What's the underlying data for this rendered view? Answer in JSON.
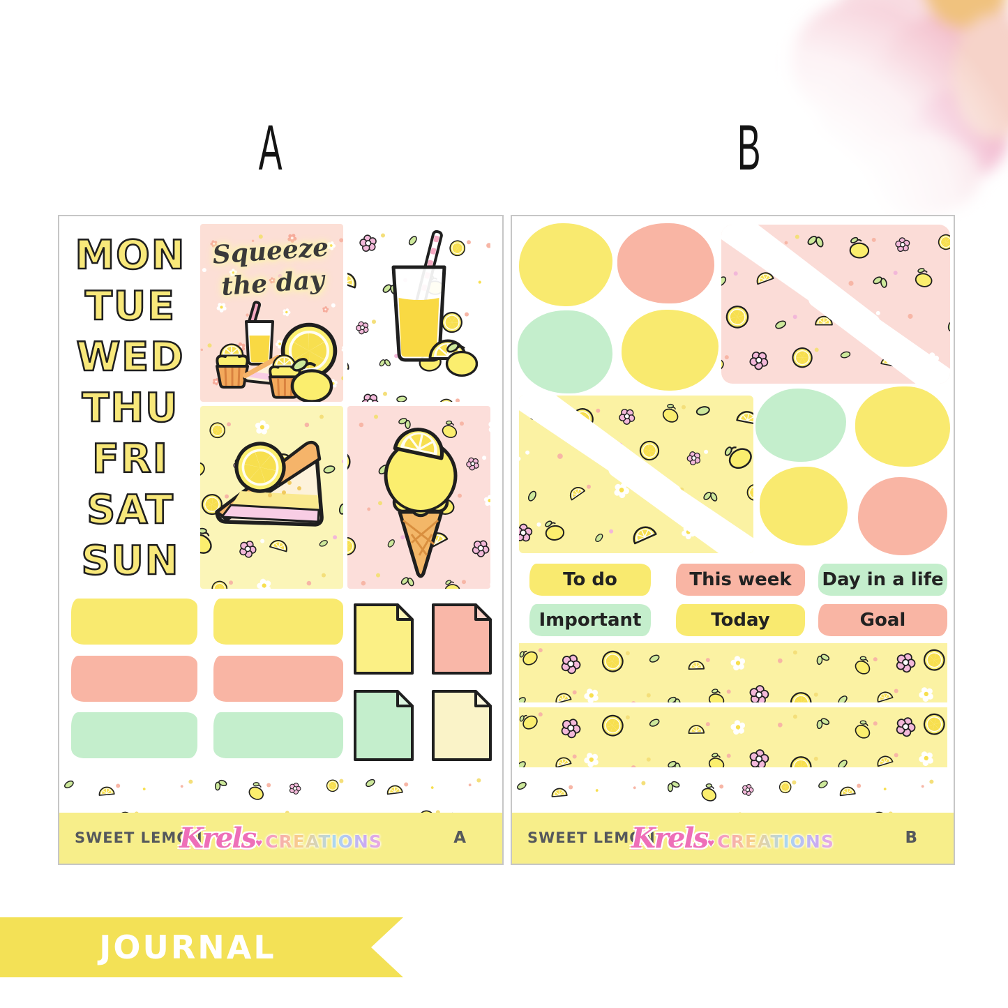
{
  "labels": {
    "sheet_a": "A",
    "sheet_b": "B"
  },
  "banner": {
    "text": "JOURNAL"
  },
  "sheet_a": {
    "days": [
      "MON",
      "TUE",
      "WED",
      "THU",
      "FRI",
      "SAT",
      "SUN"
    ],
    "quote": {
      "line1": "Squeeze",
      "line2": "the day"
    },
    "footer": {
      "title": "SWEET LEMON",
      "brand_script": "Krels",
      "brand_rest": "CREATIONS",
      "sheet_letter": "A"
    }
  },
  "sheet_b": {
    "labels": [
      {
        "text": "To do",
        "color": "#f9ea6f"
      },
      {
        "text": "This week",
        "color": "#f9b5a4"
      },
      {
        "text": "Day in a life",
        "color": "#c4eecc"
      },
      {
        "text": "Important",
        "color": "#c4eecc"
      },
      {
        "text": "Today",
        "color": "#f9ea6f"
      },
      {
        "text": "Goal",
        "color": "#f9b5a4"
      }
    ],
    "footer": {
      "title": "SWEET LEMON",
      "brand_script": "Krels",
      "brand_rest": "CREATIONS",
      "sheet_letter": "B"
    }
  },
  "palette": {
    "yellow": "#f9ea6f",
    "coral": "#f9b5a4",
    "mint": "#c4eecc",
    "cream": "#faf3c8",
    "lemon": "#fbee6e",
    "pink_box_bg": "#fcdfd6",
    "pale_yellow_bg": "#fbf5b8",
    "washi_yellow_bg": "#fbf2a3",
    "footer_yellow": "#f7ee8a",
    "banner_yellow": "#f3e156",
    "outline": "#1f1f1f"
  }
}
